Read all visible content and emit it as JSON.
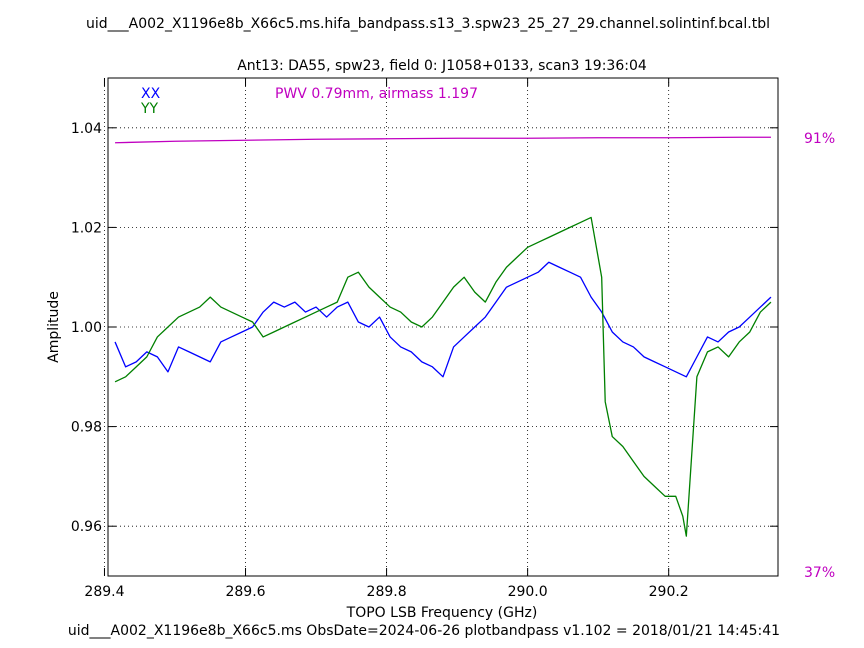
{
  "figure": {
    "title": "uid___A002_X1196e8b_X66c5.ms.hifa_bandpass.s13_3.spw23_25_27_29.channel.solintinf.bcal.tbl",
    "subtitle": "Ant13: DA55,  spw23,  field 0: J1058+0133,  scan3  19:36:04",
    "footer": "uid___A002_X1196e8b_X66c5.ms  ObsDate=2024-06-26   plotbandpass v1.102 = 2018/01/21 14:45:41",
    "pwv_annotation": "PWV 0.79mm, airmass 1.197",
    "right_axis_top_label": "91%",
    "right_axis_bottom_label": "37%"
  },
  "chart_data": {
    "type": "line",
    "xlabel": "TOPO LSB Frequency (GHz)",
    "ylabel": "Amplitude",
    "xlim": [
      289.405,
      290.355
    ],
    "ylim": [
      0.95,
      1.05
    ],
    "xticks": [
      289.4,
      289.6,
      289.8,
      290.0,
      290.2
    ],
    "xtick_labels": [
      "289.4",
      "289.6",
      "289.8",
      "290.0",
      "290.2"
    ],
    "yticks": [
      0.96,
      0.98,
      1.0,
      1.02,
      1.04
    ],
    "ytick_labels": [
      "0.96",
      "0.98",
      "1.00",
      "1.02",
      "1.04"
    ],
    "grid": true,
    "legend_position": "top-left",
    "series": [
      {
        "name": "XX",
        "color": "#0000ff",
        "x": [
          289.415,
          289.43,
          289.445,
          289.46,
          289.475,
          289.49,
          289.505,
          289.52,
          289.535,
          289.55,
          289.565,
          289.58,
          289.595,
          289.61,
          289.625,
          289.64,
          289.655,
          289.67,
          289.685,
          289.7,
          289.715,
          289.73,
          289.745,
          289.76,
          289.775,
          289.79,
          289.805,
          289.82,
          289.835,
          289.85,
          289.865,
          289.88,
          289.895,
          289.91,
          289.925,
          289.94,
          289.955,
          289.97,
          289.985,
          290.0,
          290.015,
          290.03,
          290.045,
          290.06,
          290.075,
          290.09,
          290.105,
          290.12,
          290.135,
          290.15,
          290.165,
          290.18,
          290.195,
          290.21,
          290.225,
          290.24,
          290.255,
          290.27,
          290.285,
          290.3,
          290.315,
          290.33,
          290.345
        ],
        "values": [
          0.997,
          0.992,
          0.993,
          0.995,
          0.994,
          0.991,
          0.996,
          0.995,
          0.994,
          0.993,
          0.997,
          0.998,
          0.999,
          1.0,
          1.003,
          1.005,
          1.004,
          1.005,
          1.003,
          1.004,
          1.002,
          1.004,
          1.005,
          1.001,
          1.0,
          1.002,
          0.998,
          0.996,
          0.995,
          0.993,
          0.992,
          0.99,
          0.996,
          0.998,
          1.0,
          1.002,
          1.005,
          1.008,
          1.009,
          1.01,
          1.011,
          1.013,
          1.012,
          1.011,
          1.01,
          1.006,
          1.003,
          0.999,
          0.997,
          0.996,
          0.994,
          0.993,
          0.992,
          0.991,
          0.99,
          0.994,
          0.998,
          0.997,
          0.999,
          1.0,
          1.002,
          1.004,
          1.006
        ]
      },
      {
        "name": "YY",
        "color": "#008000",
        "x": [
          289.415,
          289.43,
          289.445,
          289.46,
          289.475,
          289.49,
          289.505,
          289.52,
          289.535,
          289.55,
          289.565,
          289.58,
          289.595,
          289.61,
          289.625,
          289.64,
          289.655,
          289.67,
          289.685,
          289.7,
          289.715,
          289.73,
          289.745,
          289.76,
          289.775,
          289.79,
          289.805,
          289.82,
          289.835,
          289.85,
          289.865,
          289.88,
          289.895,
          289.91,
          289.925,
          289.94,
          289.955,
          289.97,
          289.985,
          290.0,
          290.015,
          290.03,
          290.045,
          290.06,
          290.075,
          290.09,
          290.105,
          290.11,
          290.12,
          290.135,
          290.15,
          290.165,
          290.18,
          290.195,
          290.21,
          290.22,
          290.225,
          290.24,
          290.255,
          290.27,
          290.285,
          290.3,
          290.315,
          290.33,
          290.345
        ],
        "values": [
          0.989,
          0.99,
          0.992,
          0.994,
          0.998,
          1.0,
          1.002,
          1.003,
          1.004,
          1.006,
          1.004,
          1.003,
          1.002,
          1.001,
          0.998,
          0.999,
          1.0,
          1.001,
          1.002,
          1.003,
          1.004,
          1.005,
          1.01,
          1.011,
          1.008,
          1.006,
          1.004,
          1.003,
          1.001,
          1.0,
          1.002,
          1.005,
          1.008,
          1.01,
          1.007,
          1.005,
          1.009,
          1.012,
          1.014,
          1.016,
          1.017,
          1.018,
          1.019,
          1.02,
          1.021,
          1.022,
          1.01,
          0.985,
          0.978,
          0.976,
          0.973,
          0.97,
          0.968,
          0.966,
          0.966,
          0.962,
          0.958,
          0.99,
          0.995,
          0.996,
          0.994,
          0.997,
          0.999,
          1.003,
          1.005
        ]
      }
    ],
    "atmosphere": {
      "color": "#c000c0",
      "x": [
        289.415,
        289.5,
        289.6,
        289.7,
        289.8,
        289.9,
        290.0,
        290.1,
        290.2,
        290.3,
        290.345
      ],
      "values": [
        1.037,
        1.0373,
        1.0375,
        1.0377,
        1.0378,
        1.0379,
        1.0379,
        1.038,
        1.038,
        1.0381,
        1.0381
      ]
    }
  }
}
